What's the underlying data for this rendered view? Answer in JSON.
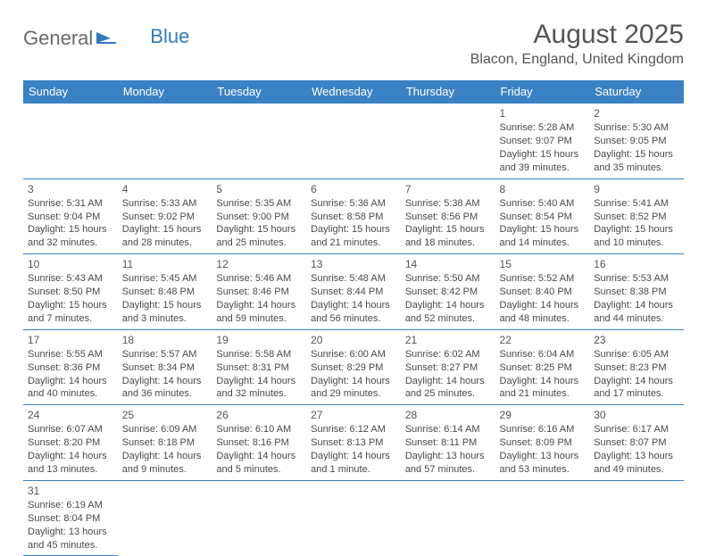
{
  "logo": {
    "general": "General",
    "blue": "Blue"
  },
  "title": "August 2025",
  "location": "Blacon, England, United Kingdom",
  "colors": {
    "header_bg": "#3b82c4",
    "header_text": "#ffffff",
    "cell_border": "#3b82c4",
    "body_text": "#4a4a4a"
  },
  "day_headers": [
    "Sunday",
    "Monday",
    "Tuesday",
    "Wednesday",
    "Thursday",
    "Friday",
    "Saturday"
  ],
  "weeks": [
    [
      null,
      null,
      null,
      null,
      null,
      {
        "n": "1",
        "sr": "5:28 AM",
        "ss": "9:07 PM",
        "dl": "15 hours and 39 minutes."
      },
      {
        "n": "2",
        "sr": "5:30 AM",
        "ss": "9:05 PM",
        "dl": "15 hours and 35 minutes."
      }
    ],
    [
      {
        "n": "3",
        "sr": "5:31 AM",
        "ss": "9:04 PM",
        "dl": "15 hours and 32 minutes."
      },
      {
        "n": "4",
        "sr": "5:33 AM",
        "ss": "9:02 PM",
        "dl": "15 hours and 28 minutes."
      },
      {
        "n": "5",
        "sr": "5:35 AM",
        "ss": "9:00 PM",
        "dl": "15 hours and 25 minutes."
      },
      {
        "n": "6",
        "sr": "5:36 AM",
        "ss": "8:58 PM",
        "dl": "15 hours and 21 minutes."
      },
      {
        "n": "7",
        "sr": "5:38 AM",
        "ss": "8:56 PM",
        "dl": "15 hours and 18 minutes."
      },
      {
        "n": "8",
        "sr": "5:40 AM",
        "ss": "8:54 PM",
        "dl": "15 hours and 14 minutes."
      },
      {
        "n": "9",
        "sr": "5:41 AM",
        "ss": "8:52 PM",
        "dl": "15 hours and 10 minutes."
      }
    ],
    [
      {
        "n": "10",
        "sr": "5:43 AM",
        "ss": "8:50 PM",
        "dl": "15 hours and 7 minutes."
      },
      {
        "n": "11",
        "sr": "5:45 AM",
        "ss": "8:48 PM",
        "dl": "15 hours and 3 minutes."
      },
      {
        "n": "12",
        "sr": "5:46 AM",
        "ss": "8:46 PM",
        "dl": "14 hours and 59 minutes."
      },
      {
        "n": "13",
        "sr": "5:48 AM",
        "ss": "8:44 PM",
        "dl": "14 hours and 56 minutes."
      },
      {
        "n": "14",
        "sr": "5:50 AM",
        "ss": "8:42 PM",
        "dl": "14 hours and 52 minutes."
      },
      {
        "n": "15",
        "sr": "5:52 AM",
        "ss": "8:40 PM",
        "dl": "14 hours and 48 minutes."
      },
      {
        "n": "16",
        "sr": "5:53 AM",
        "ss": "8:38 PM",
        "dl": "14 hours and 44 minutes."
      }
    ],
    [
      {
        "n": "17",
        "sr": "5:55 AM",
        "ss": "8:36 PM",
        "dl": "14 hours and 40 minutes."
      },
      {
        "n": "18",
        "sr": "5:57 AM",
        "ss": "8:34 PM",
        "dl": "14 hours and 36 minutes."
      },
      {
        "n": "19",
        "sr": "5:58 AM",
        "ss": "8:31 PM",
        "dl": "14 hours and 32 minutes."
      },
      {
        "n": "20",
        "sr": "6:00 AM",
        "ss": "8:29 PM",
        "dl": "14 hours and 29 minutes."
      },
      {
        "n": "21",
        "sr": "6:02 AM",
        "ss": "8:27 PM",
        "dl": "14 hours and 25 minutes."
      },
      {
        "n": "22",
        "sr": "6:04 AM",
        "ss": "8:25 PM",
        "dl": "14 hours and 21 minutes."
      },
      {
        "n": "23",
        "sr": "6:05 AM",
        "ss": "8:23 PM",
        "dl": "14 hours and 17 minutes."
      }
    ],
    [
      {
        "n": "24",
        "sr": "6:07 AM",
        "ss": "8:20 PM",
        "dl": "14 hours and 13 minutes."
      },
      {
        "n": "25",
        "sr": "6:09 AM",
        "ss": "8:18 PM",
        "dl": "14 hours and 9 minutes."
      },
      {
        "n": "26",
        "sr": "6:10 AM",
        "ss": "8:16 PM",
        "dl": "14 hours and 5 minutes."
      },
      {
        "n": "27",
        "sr": "6:12 AM",
        "ss": "8:13 PM",
        "dl": "14 hours and 1 minute."
      },
      {
        "n": "28",
        "sr": "6:14 AM",
        "ss": "8:11 PM",
        "dl": "13 hours and 57 minutes."
      },
      {
        "n": "29",
        "sr": "6:16 AM",
        "ss": "8:09 PM",
        "dl": "13 hours and 53 minutes."
      },
      {
        "n": "30",
        "sr": "6:17 AM",
        "ss": "8:07 PM",
        "dl": "13 hours and 49 minutes."
      }
    ],
    [
      {
        "n": "31",
        "sr": "6:19 AM",
        "ss": "8:04 PM",
        "dl": "13 hours and 45 minutes."
      },
      "blank",
      "blank",
      "blank",
      "blank",
      "blank",
      "blank"
    ]
  ],
  "labels": {
    "sunrise": "Sunrise:",
    "sunset": "Sunset:",
    "daylight": "Daylight:"
  }
}
